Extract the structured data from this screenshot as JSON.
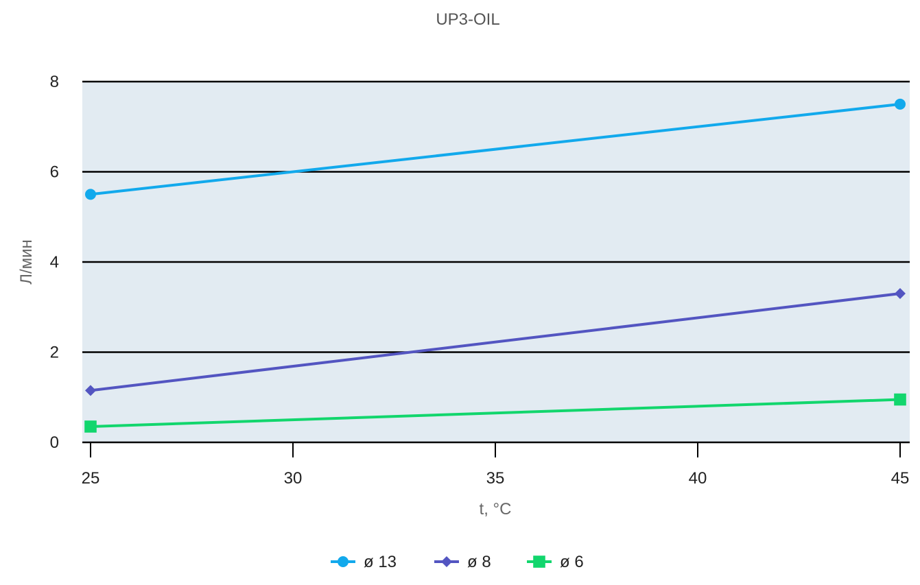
{
  "chart_data": {
    "type": "line",
    "title": "UP3-OIL",
    "xlabel": "t, °C",
    "ylabel": "Л/мин",
    "x": [
      25,
      45
    ],
    "xlim": [
      25,
      45
    ],
    "xticks": [
      25,
      30,
      35,
      40,
      45
    ],
    "ylim": [
      0,
      8
    ],
    "yticks": [
      0,
      2,
      4,
      6,
      8
    ],
    "grid": true,
    "legend_position": "bottom",
    "background": "#e2ebf2",
    "series": [
      {
        "name": "ø 13",
        "values": [
          5.5,
          7.5
        ],
        "color": "#12a9ec",
        "marker": "circle"
      },
      {
        "name": "ø 8",
        "values": [
          1.15,
          3.3
        ],
        "color": "#5355c1",
        "marker": "diamond"
      },
      {
        "name": "ø 6",
        "values": [
          0.35,
          0.95
        ],
        "color": "#12d66d",
        "marker": "square"
      }
    ]
  }
}
